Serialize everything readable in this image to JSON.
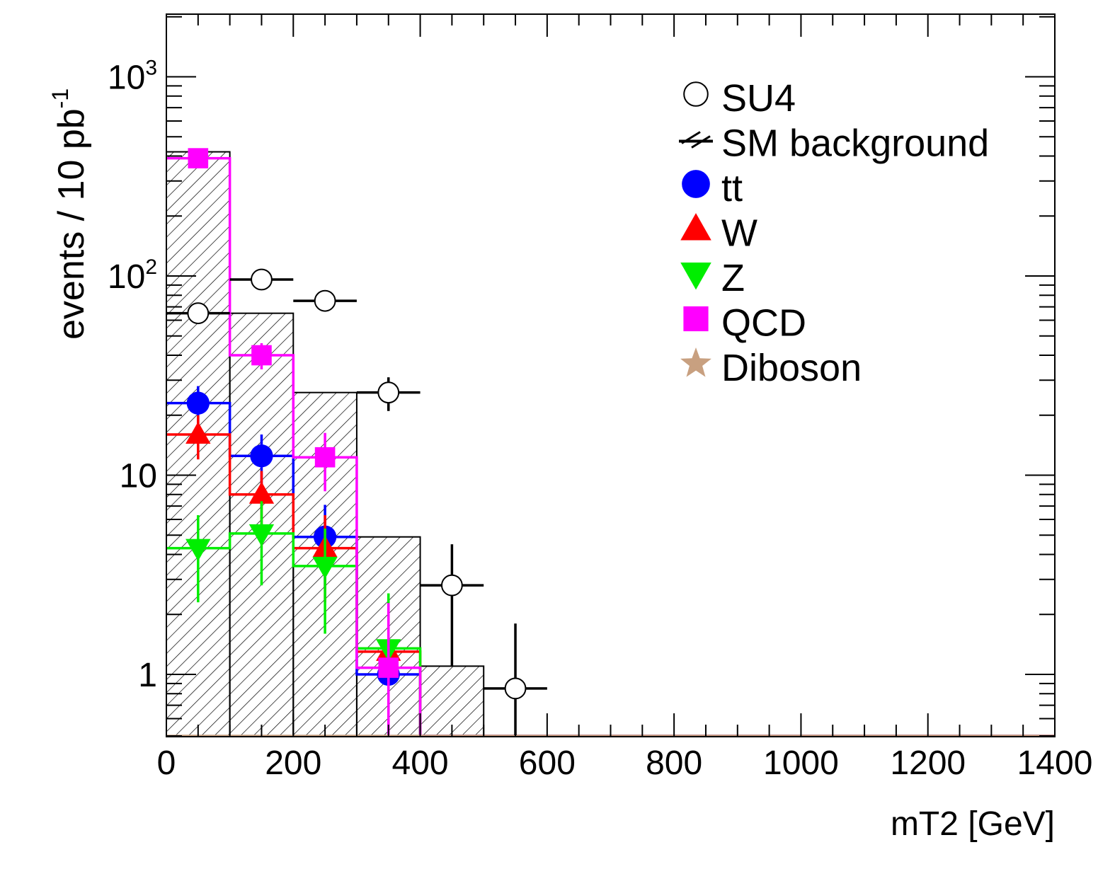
{
  "chart_data": {
    "type": "histogram",
    "xlabel": "mT2 [GeV]",
    "ylabel_main": "events / 10 pb",
    "ylabel_sup": "-1",
    "xlim": [
      0,
      1400
    ],
    "ylim": [
      0.5,
      2000
    ],
    "yscale": "log",
    "x_ticks": [
      0,
      200,
      400,
      600,
      800,
      1000,
      1200,
      1400
    ],
    "x_tick_labels": [
      "0",
      "200",
      "400",
      "600",
      "800",
      "1000",
      "1200",
      "1400"
    ],
    "y_ticks": [
      {
        "value": 1000,
        "base": "10",
        "sup": "3"
      },
      {
        "value": 100,
        "base": "10",
        "sup": "2"
      },
      {
        "value": 10,
        "base": "10",
        "sup": ""
      },
      {
        "value": 1,
        "base": "1",
        "sup": ""
      }
    ],
    "bin_edges": [
      0,
      100,
      200,
      300,
      400,
      500,
      600,
      700,
      800,
      900,
      1000,
      1100,
      1200,
      1300,
      1400
    ],
    "sm_background": {
      "name": "SM background",
      "values": [
        420,
        65,
        26,
        4.9,
        1.1,
        0,
        0,
        0,
        0,
        0,
        0,
        0,
        0,
        0
      ]
    },
    "su4": {
      "name": "SU4",
      "points": [
        {
          "x": 50,
          "y": 65,
          "err_lo": 5,
          "err_hi": 5
        },
        {
          "x": 150,
          "y": 96,
          "err_lo": 7,
          "err_hi": 7
        },
        {
          "x": 250,
          "y": 75,
          "err_lo": 7,
          "err_hi": 7
        },
        {
          "x": 350,
          "y": 26,
          "err_lo": 5,
          "err_hi": 5
        },
        {
          "x": 450,
          "y": 2.8,
          "err_lo": 1.7,
          "err_hi": 1.7
        },
        {
          "x": 550,
          "y": 0.85,
          "err_lo": 0.85,
          "err_hi": 0.95
        }
      ]
    },
    "series": [
      {
        "name": "tt",
        "color": "#0000ff",
        "marker": "circle",
        "values": [
          23,
          12.5,
          4.9,
          1.0,
          0,
          0,
          0,
          0,
          0,
          0,
          0,
          0,
          0,
          0
        ],
        "errors": [
          5,
          3.5,
          2.2,
          0.8,
          0,
          0,
          0,
          0,
          0,
          0,
          0,
          0,
          0,
          0
        ]
      },
      {
        "name": "W",
        "color": "#ff0000",
        "marker": "triangle-up",
        "values": [
          16,
          8,
          4.3,
          1.3,
          0,
          0,
          0,
          0,
          0,
          0,
          0,
          0,
          0,
          0
        ],
        "errors": [
          4,
          2.5,
          2,
          0.9,
          0,
          0,
          0,
          0,
          0,
          0,
          0,
          0,
          0,
          0
        ]
      },
      {
        "name": "Z",
        "color": "#00ee00",
        "marker": "triangle-down",
        "values": [
          4.3,
          5.1,
          3.5,
          1.35,
          0,
          0,
          0,
          0,
          0,
          0,
          0,
          0,
          0,
          0
        ],
        "errors": [
          2,
          2.3,
          1.9,
          1.2,
          0,
          0,
          0,
          0,
          0,
          0,
          0,
          0,
          0,
          0
        ]
      },
      {
        "name": "QCD",
        "color": "#ff00ff",
        "marker": "square",
        "values": [
          390,
          40,
          12.3,
          1.08,
          0,
          0,
          0,
          0,
          0,
          0,
          0,
          0,
          0,
          0
        ],
        "errors": [
          30,
          6,
          4,
          1.2,
          0,
          0,
          0,
          0,
          0,
          0,
          0,
          0,
          0,
          0
        ]
      },
      {
        "name": "Diboson",
        "color": "#c8a080",
        "marker": "star",
        "values": [
          0,
          0,
          0,
          0,
          0,
          0,
          0,
          0,
          0,
          0,
          0,
          0,
          0,
          0
        ],
        "errors": [
          0,
          0,
          0,
          0,
          0,
          0,
          0,
          0,
          0,
          0,
          0,
          0,
          0,
          0
        ]
      }
    ],
    "legend_position": "top-right",
    "grid": false
  }
}
